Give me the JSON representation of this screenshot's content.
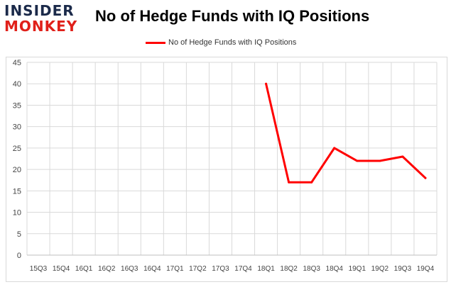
{
  "logo": {
    "line1": "INSIDER",
    "line2": "MONKEY"
  },
  "chart_data": {
    "type": "line",
    "title": "No of Hedge Funds with IQ Positions",
    "categories": [
      "15Q3",
      "15Q4",
      "16Q1",
      "16Q2",
      "16Q3",
      "16Q4",
      "17Q1",
      "17Q2",
      "17Q3",
      "17Q4",
      "18Q1",
      "18Q2",
      "18Q3",
      "18Q4",
      "19Q1",
      "19Q2",
      "19Q3",
      "19Q4"
    ],
    "series": [
      {
        "name": "No of Hedge Funds with IQ Positions",
        "values": [
          null,
          null,
          null,
          null,
          null,
          null,
          null,
          null,
          null,
          null,
          40,
          17,
          17,
          25,
          22,
          22,
          23,
          18
        ]
      }
    ],
    "ylim": [
      0,
      45
    ],
    "yticks": [
      0,
      5,
      10,
      15,
      20,
      25,
      30,
      35,
      40,
      45
    ],
    "grid": true,
    "legend": "top-center",
    "line_color": "#ff0000"
  }
}
